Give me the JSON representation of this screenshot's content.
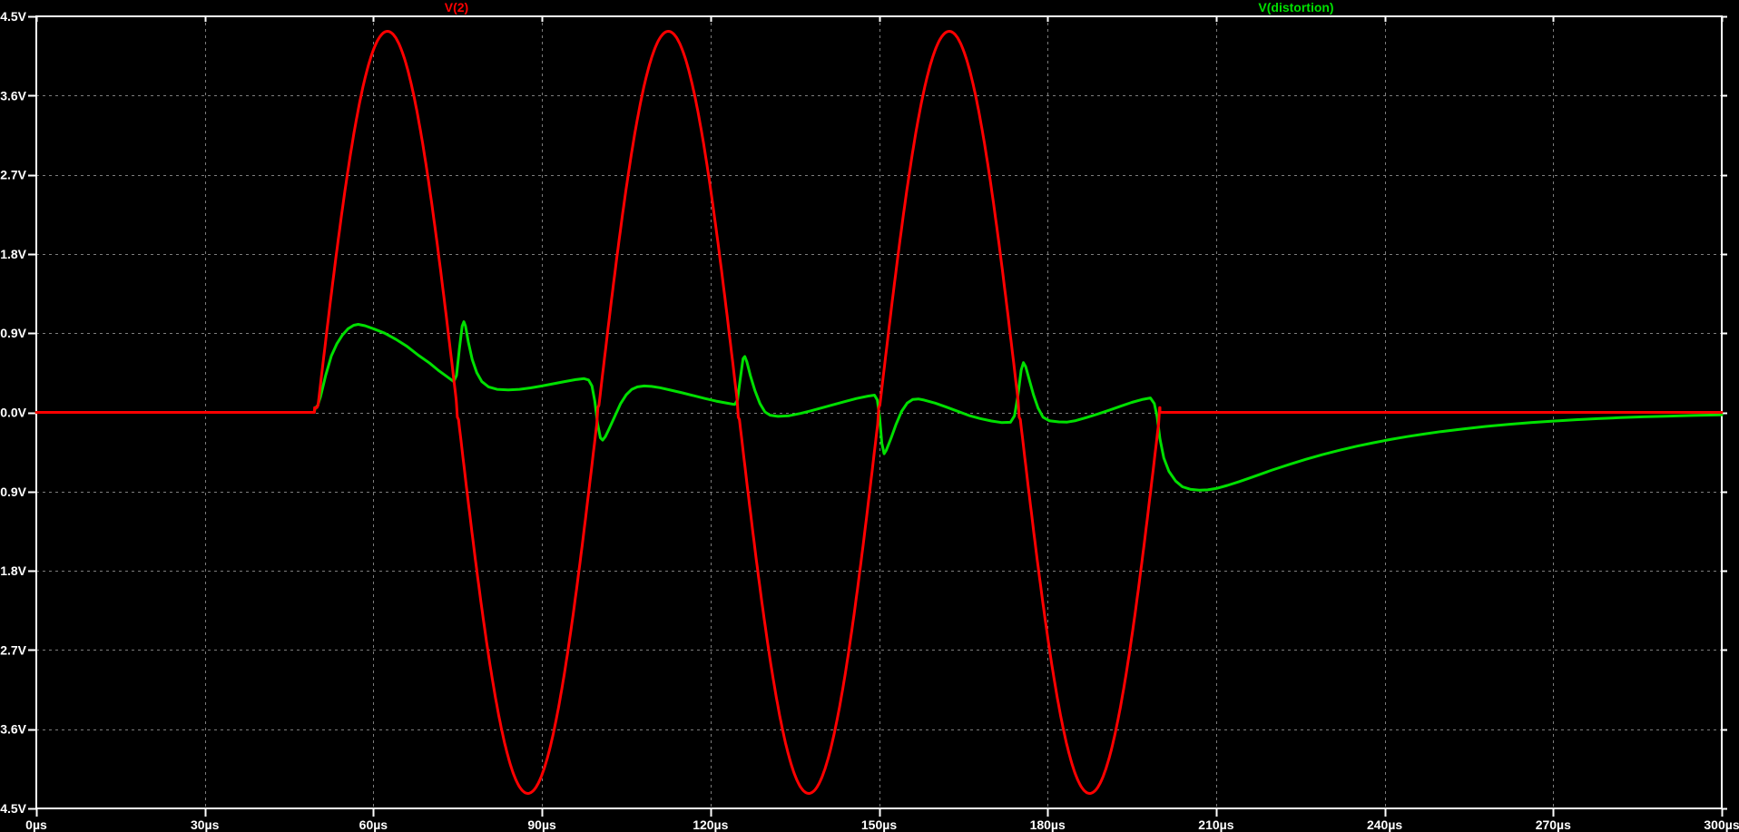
{
  "window": {
    "background_color": "#000000",
    "axis_color": "#ffffff",
    "grid_color": "#7d7d7d",
    "grid_style": "dashed"
  },
  "chart_data": {
    "type": "line",
    "title": "",
    "xlabel": "",
    "ylabel": "",
    "x_unit": "µs",
    "y_unit": "V",
    "xlim": [
      0,
      300
    ],
    "ylim": [
      -4.5,
      4.5
    ],
    "grid": true,
    "legend_position": "top",
    "x_ticks": {
      "values": [
        0,
        30,
        60,
        90,
        120,
        150,
        180,
        210,
        240,
        270,
        300
      ],
      "labels": [
        "0µs",
        "30µs",
        "60µs",
        "90µs",
        "120µs",
        "150µs",
        "180µs",
        "210µs",
        "240µs",
        "270µs",
        "300µs"
      ]
    },
    "y_ticks": {
      "values": [
        4.5,
        3.6,
        2.7,
        1.8,
        0.9,
        0.0,
        -0.9,
        -1.8,
        -2.7,
        -3.6,
        -4.5
      ],
      "labels": [
        "4.5V",
        "3.6V",
        "2.7V",
        "1.8V",
        "0.9V",
        "0.0V",
        "-0.9V",
        "-1.8V",
        "-2.7V",
        "-3.6V",
        "-4.5V"
      ]
    },
    "series": [
      {
        "name": "V(2)",
        "color": "#ff0000",
        "shape": "sine_burst",
        "sine_burst": {
          "idle_value": 0,
          "t_start": 50,
          "t_end": 200,
          "period": 50,
          "amplitude": 4.33,
          "crossover_step": 0.055,
          "cycles": 3
        }
      },
      {
        "name": "V(distortion)",
        "color": "#00e000",
        "shape": "points",
        "points": [
          [
            0,
            0
          ],
          [
            49.4,
            0
          ],
          [
            49.7,
            0.05
          ],
          [
            50.1,
            0.08
          ],
          [
            50.6,
            0.18
          ],
          [
            51.5,
            0.42
          ],
          [
            52.5,
            0.64
          ],
          [
            53.5,
            0.78
          ],
          [
            54.5,
            0.88
          ],
          [
            55.5,
            0.95
          ],
          [
            56.5,
            0.99
          ],
          [
            57.3,
            1.0
          ],
          [
            58.5,
            0.985
          ],
          [
            60,
            0.95
          ],
          [
            62,
            0.9
          ],
          [
            64,
            0.83
          ],
          [
            66,
            0.75
          ],
          [
            68,
            0.65
          ],
          [
            70,
            0.56
          ],
          [
            71.5,
            0.48
          ],
          [
            73,
            0.41
          ],
          [
            74.3,
            0.35
          ],
          [
            74.8,
            0.42
          ],
          [
            75.3,
            0.72
          ],
          [
            75.8,
            0.98
          ],
          [
            76.1,
            1.03
          ],
          [
            76.4,
            0.98
          ],
          [
            76.9,
            0.8
          ],
          [
            77.6,
            0.6
          ],
          [
            78.4,
            0.45
          ],
          [
            79.3,
            0.35
          ],
          [
            80.5,
            0.29
          ],
          [
            82,
            0.262
          ],
          [
            84,
            0.255
          ],
          [
            86,
            0.262
          ],
          [
            88,
            0.278
          ],
          [
            90,
            0.3
          ],
          [
            92,
            0.325
          ],
          [
            94,
            0.35
          ],
          [
            96,
            0.372
          ],
          [
            97.5,
            0.383
          ],
          [
            98.3,
            0.368
          ],
          [
            98.9,
            0.3
          ],
          [
            99.4,
            0.13
          ],
          [
            99.9,
            -0.13
          ],
          [
            100.4,
            -0.29
          ],
          [
            100.8,
            -0.315
          ],
          [
            101.3,
            -0.275
          ],
          [
            102,
            -0.18
          ],
          [
            103,
            -0.04
          ],
          [
            104,
            0.1
          ],
          [
            105,
            0.2
          ],
          [
            106,
            0.262
          ],
          [
            107,
            0.29
          ],
          [
            108.2,
            0.3
          ],
          [
            109.5,
            0.295
          ],
          [
            111,
            0.28
          ],
          [
            113,
            0.252
          ],
          [
            115,
            0.222
          ],
          [
            117,
            0.19
          ],
          [
            119,
            0.158
          ],
          [
            121,
            0.128
          ],
          [
            123,
            0.104
          ],
          [
            124.3,
            0.09
          ],
          [
            124.8,
            0.14
          ],
          [
            125.3,
            0.38
          ],
          [
            125.8,
            0.61
          ],
          [
            126.1,
            0.635
          ],
          [
            126.5,
            0.57
          ],
          [
            127.1,
            0.42
          ],
          [
            127.9,
            0.25
          ],
          [
            128.8,
            0.1
          ],
          [
            129.7,
            0.005
          ],
          [
            130.6,
            -0.032
          ],
          [
            132,
            -0.045
          ],
          [
            134,
            -0.038
          ],
          [
            136,
            -0.012
          ],
          [
            138,
            0.02
          ],
          [
            140,
            0.055
          ],
          [
            142,
            0.09
          ],
          [
            144,
            0.125
          ],
          [
            146,
            0.158
          ],
          [
            148,
            0.185
          ],
          [
            149.2,
            0.196
          ],
          [
            149.7,
            0.14
          ],
          [
            150.1,
            -0.05
          ],
          [
            150.5,
            -0.35
          ],
          [
            150.9,
            -0.47
          ],
          [
            151.3,
            -0.43
          ],
          [
            152.1,
            -0.3
          ],
          [
            153,
            -0.14
          ],
          [
            154,
            0.01
          ],
          [
            155,
            0.105
          ],
          [
            156,
            0.147
          ],
          [
            157,
            0.153
          ],
          [
            158,
            0.14
          ],
          [
            160,
            0.105
          ],
          [
            162,
            0.06
          ],
          [
            164,
            0.012
          ],
          [
            166,
            -0.035
          ],
          [
            168,
            -0.07
          ],
          [
            170,
            -0.098
          ],
          [
            171.8,
            -0.115
          ],
          [
            173.4,
            -0.112
          ],
          [
            174.1,
            -0.04
          ],
          [
            174.7,
            0.18
          ],
          [
            175.3,
            0.48
          ],
          [
            175.7,
            0.565
          ],
          [
            176.1,
            0.52
          ],
          [
            176.7,
            0.38
          ],
          [
            177.5,
            0.2
          ],
          [
            178.3,
            0.05
          ],
          [
            179.2,
            -0.055
          ],
          [
            180.3,
            -0.095
          ],
          [
            182,
            -0.108
          ],
          [
            183.5,
            -0.11
          ],
          [
            185,
            -0.094
          ],
          [
            187,
            -0.058
          ],
          [
            189,
            -0.018
          ],
          [
            191,
            0.025
          ],
          [
            193,
            0.07
          ],
          [
            195,
            0.113
          ],
          [
            197,
            0.148
          ],
          [
            198.3,
            0.164
          ],
          [
            199,
            0.1
          ],
          [
            199.5,
            -0.05
          ],
          [
            200,
            -0.3
          ],
          [
            200.7,
            -0.52
          ],
          [
            201.6,
            -0.67
          ],
          [
            202.8,
            -0.78
          ],
          [
            204,
            -0.845
          ],
          [
            205.5,
            -0.875
          ],
          [
            207,
            -0.885
          ],
          [
            208.5,
            -0.88
          ],
          [
            210,
            -0.865
          ],
          [
            212,
            -0.83
          ],
          [
            214,
            -0.79
          ],
          [
            216,
            -0.745
          ],
          [
            218,
            -0.7
          ],
          [
            220,
            -0.655
          ],
          [
            223,
            -0.592
          ],
          [
            226,
            -0.533
          ],
          [
            229,
            -0.478
          ],
          [
            232,
            -0.43
          ],
          [
            235,
            -0.385
          ],
          [
            238,
            -0.345
          ],
          [
            241,
            -0.308
          ],
          [
            244,
            -0.275
          ],
          [
            247,
            -0.246
          ],
          [
            250,
            -0.219
          ],
          [
            254,
            -0.188
          ],
          [
            258,
            -0.16
          ],
          [
            262,
            -0.137
          ],
          [
            266,
            -0.116
          ],
          [
            270,
            -0.099
          ],
          [
            274,
            -0.084
          ],
          [
            278,
            -0.071
          ],
          [
            282,
            -0.06
          ],
          [
            286,
            -0.051
          ],
          [
            290,
            -0.043
          ],
          [
            295,
            -0.035
          ],
          [
            300,
            -0.029
          ]
        ]
      }
    ]
  }
}
